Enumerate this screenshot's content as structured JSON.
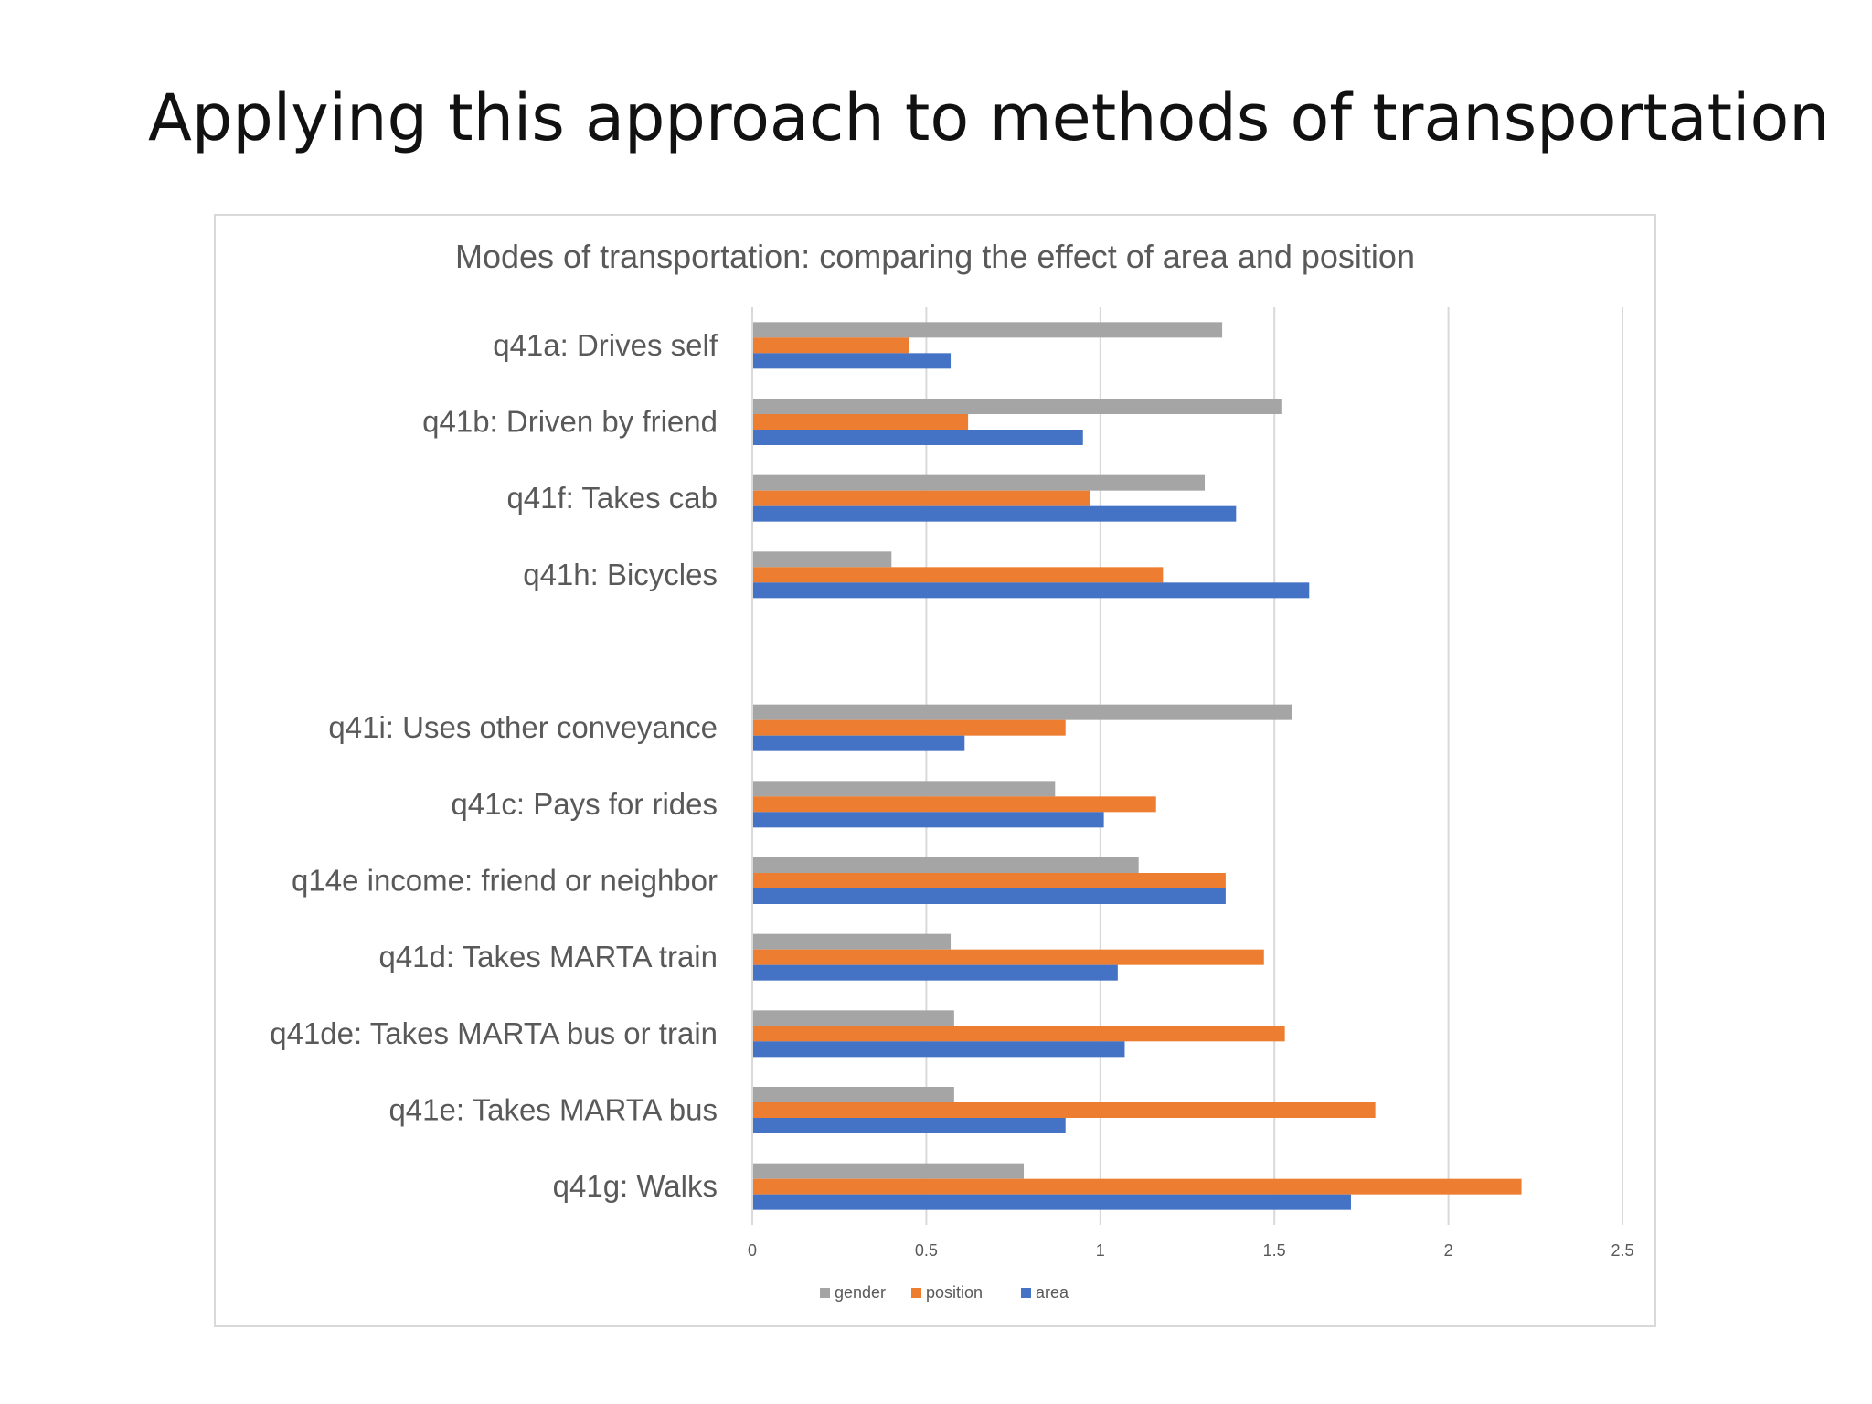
{
  "slide": {
    "title": "Applying this approach to methods of transportation"
  },
  "chart_data": {
    "type": "bar",
    "orientation": "horizontal",
    "title": "Modes of transportation: comparing the effect of area and position",
    "xlabel": "",
    "ylabel": "",
    "xlim": [
      0,
      2.5
    ],
    "x_ticks": [
      "0",
      "0.5",
      "1",
      "1.5",
      "2",
      "2.5"
    ],
    "grid": true,
    "legend_position": "bottom",
    "categories": [
      "q41a: Drives self",
      "q41b: Driven by friend",
      "q41f: Takes cab",
      "q41h: Bicycles",
      "",
      "q41i: Uses other conveyance",
      "q41c: Pays for rides",
      "q14e  income: friend or neighbor",
      "q41d: Takes MARTA train",
      "q41de: Takes MARTA bus or train",
      "q41e: Takes MARTA bus",
      "q41g: Walks"
    ],
    "series": [
      {
        "name": "gender",
        "color": "#a5a5a5",
        "values": [
          1.35,
          1.52,
          1.3,
          0.4,
          null,
          1.55,
          0.87,
          1.11,
          0.57,
          0.58,
          0.58,
          0.78
        ]
      },
      {
        "name": "position",
        "color": "#ed7d31",
        "values": [
          0.45,
          0.62,
          0.97,
          1.18,
          null,
          0.9,
          1.16,
          1.36,
          1.47,
          1.53,
          1.79,
          2.21
        ]
      },
      {
        "name": "area",
        "color": "#4472c4",
        "values": [
          0.57,
          0.95,
          1.39,
          1.6,
          null,
          0.61,
          1.01,
          1.36,
          1.05,
          1.07,
          0.9,
          1.72
        ]
      }
    ]
  }
}
